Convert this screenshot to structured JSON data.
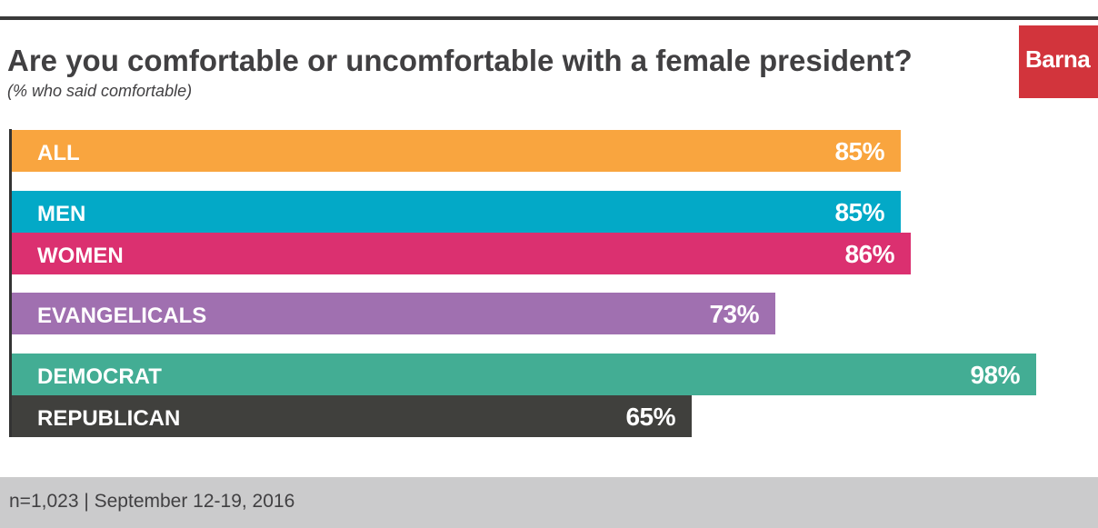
{
  "header": {
    "title": "Are you comfortable or uncomfortable with a female president?",
    "subtitle": "(% who said comfortable)",
    "logo": "Barna"
  },
  "footer": {
    "note": "n=1,023 | September 12-19, 2016"
  },
  "colors": {
    "all": "#f9a53f",
    "men": "#03a9c7",
    "women": "#db3070",
    "evangelicals": "#a070b0",
    "democrat": "#43ad94",
    "republican": "#40403d",
    "logo": "#d2343c",
    "footer": "#cbcbcc"
  },
  "chart_data": {
    "type": "bar",
    "orientation": "horizontal",
    "title": "Are you comfortable or uncomfortable with a female president?",
    "subtitle": "(% who said comfortable)",
    "categories": [
      "ALL",
      "MEN",
      "WOMEN",
      "EVANGELICALS",
      "DEMOCRAT",
      "REPUBLICAN"
    ],
    "values": [
      85,
      85,
      86,
      73,
      98,
      65
    ],
    "value_labels": [
      "85%",
      "85%",
      "86%",
      "73%",
      "98%",
      "65%"
    ],
    "unit": "%",
    "xlim": [
      0,
      100
    ],
    "grid": false,
    "legend": "none"
  }
}
